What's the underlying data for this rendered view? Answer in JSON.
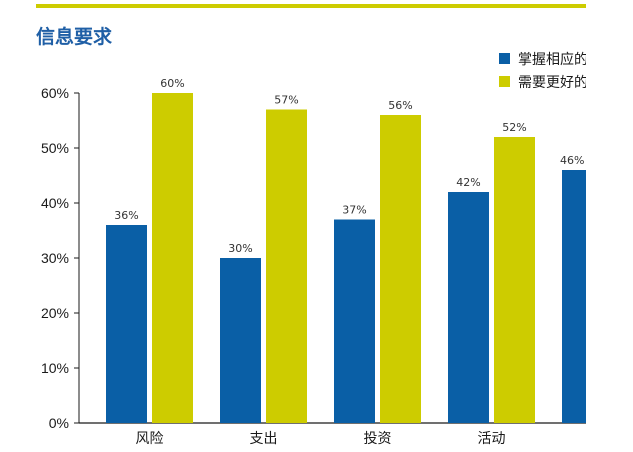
{
  "colors": {
    "accent_bar": "#cdcc00",
    "title": "#1f5fa6",
    "series_1": "#0a5fa6",
    "series_2": "#cdcc00",
    "axis": "#1a1a1a"
  },
  "chart_data": {
    "type": "bar",
    "title": "信息要求",
    "xlabel": "",
    "ylabel": "",
    "categories": [
      "风险",
      "支出",
      "投资",
      "活动",
      ""
    ],
    "series": [
      {
        "name": "掌握相应的",
        "values": [
          36,
          30,
          37,
          42,
          46
        ]
      },
      {
        "name": "需要更好的",
        "values": [
          60,
          57,
          56,
          52,
          null
        ]
      }
    ],
    "value_labels": [
      [
        "36%",
        "30%",
        "37%",
        "42%",
        "46%"
      ],
      [
        "60%",
        "57%",
        "56%",
        "52%",
        ""
      ]
    ],
    "y_ticks": [
      "0%",
      "10%",
      "20%",
      "30%",
      "40%",
      "50%",
      "60%"
    ],
    "ylim": [
      0,
      60
    ],
    "grid": false,
    "legend_position": "top-right"
  }
}
